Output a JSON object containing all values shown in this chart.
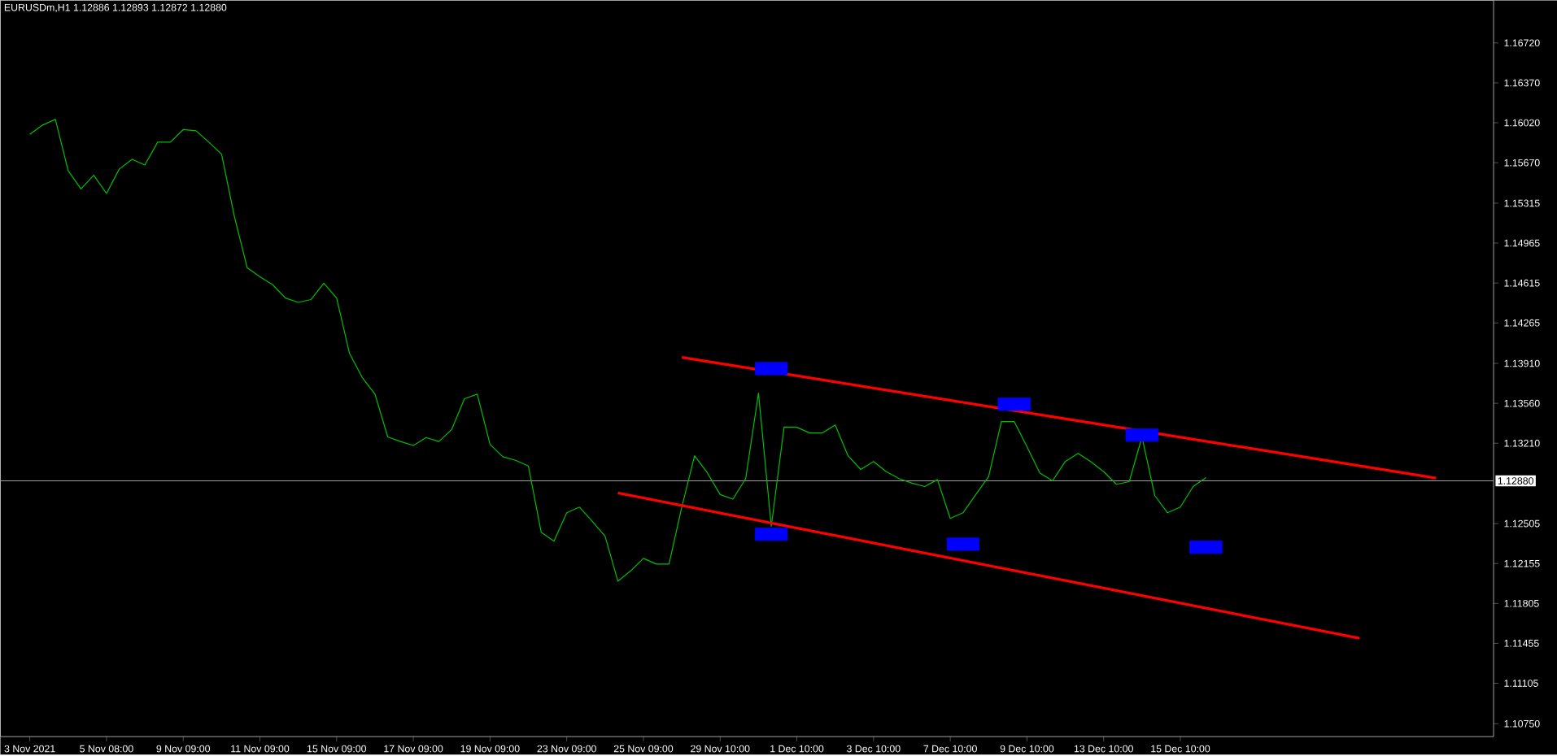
{
  "chart_data": {
    "type": "line",
    "title": "EURUSDm,H1  1.12886 1.12893 1.12872 1.12880",
    "categories": [
      "3 Nov 2021",
      null,
      null,
      null,
      null,
      null,
      "5 Nov 08:00",
      null,
      null,
      null,
      null,
      null,
      "9 Nov 09:00",
      null,
      null,
      null,
      null,
      null,
      "11 Nov 09:00",
      null,
      null,
      null,
      null,
      null,
      "15 Nov 09:00",
      null,
      null,
      null,
      null,
      null,
      "17 Nov 09:00",
      null,
      null,
      null,
      null,
      null,
      "19 Nov 09:00",
      null,
      null,
      null,
      null,
      null,
      "23 Nov 09:00",
      null,
      null,
      null,
      null,
      null,
      "25 Nov 09:00",
      null,
      null,
      null,
      null,
      null,
      "29 Nov 10:00",
      null,
      null,
      null,
      null,
      null,
      "1 Dec 10:00",
      null,
      null,
      null,
      null,
      null,
      "3 Dec 10:00",
      null,
      null,
      null,
      null,
      null,
      "7 Dec 10:00",
      null,
      null,
      null,
      null,
      null,
      "9 Dec 10:00",
      null,
      null,
      null,
      null,
      null,
      "13 Dec 10:00",
      null,
      null,
      null,
      null,
      null,
      "15 Dec 10:00",
      null,
      null,
      null,
      null,
      null,
      null,
      null,
      null,
      null,
      null,
      null,
      null,
      null,
      null,
      null,
      null,
      null,
      null,
      null,
      null,
      null,
      null,
      null,
      null
    ],
    "ylim": [
      1.10637,
      1.17094
    ],
    "yticks": [
      {
        "value": 1.1075,
        "label": "1.10750"
      },
      {
        "value": 1.11105,
        "label": "1.11105"
      },
      {
        "value": 1.11455,
        "label": "1.11455"
      },
      {
        "value": 1.11805,
        "label": "1.11805"
      },
      {
        "value": 1.12155,
        "label": "1.12155"
      },
      {
        "value": 1.12505,
        "label": "1.12505"
      },
      {
        "value": 1.1321,
        "label": "1.13210"
      },
      {
        "value": 1.1356,
        "label": "1.13560"
      },
      {
        "value": 1.1391,
        "label": "1.13910"
      },
      {
        "value": 1.14265,
        "label": "1.14265"
      },
      {
        "value": 1.14615,
        "label": "1.14615"
      },
      {
        "value": 1.14965,
        "label": "1.14965"
      },
      {
        "value": 1.15315,
        "label": "1.15315"
      },
      {
        "value": 1.1567,
        "label": "1.15670"
      },
      {
        "value": 1.1602,
        "label": "1.16020"
      },
      {
        "value": 1.1637,
        "label": "1.16370"
      },
      {
        "value": 1.1672,
        "label": "1.16720"
      }
    ],
    "ref_lines": [
      {
        "axis": "y",
        "value": 1.1288,
        "label": "1.12880",
        "color": "#a0a0a0"
      }
    ],
    "series": [
      {
        "color": "#00c000",
        "values": [
          1.15919,
          1.16,
          1.1605,
          1.156,
          1.1544,
          1.1556,
          1.154,
          1.15615,
          1.157,
          1.1565,
          1.1585,
          1.1585,
          1.1596,
          1.1595,
          1.1585,
          1.15745,
          1.152,
          1.1475,
          1.1467,
          1.146,
          1.14483,
          1.14445,
          1.1447,
          1.14614,
          1.14483,
          1.14,
          1.13787,
          1.1364,
          1.13265,
          1.13225,
          1.1319,
          1.1326,
          1.13225,
          1.1333,
          1.136,
          1.1364,
          1.132,
          1.13091,
          1.1306,
          1.1301,
          1.1243,
          1.12351,
          1.126,
          1.1265,
          1.12525,
          1.12394,
          1.12,
          1.1209,
          1.122,
          1.1215,
          1.1215,
          1.1265,
          1.131,
          1.1295,
          1.1276,
          1.1272,
          1.129,
          1.1365,
          1.12481,
          1.13352,
          1.1335,
          1.133,
          1.133,
          1.1337,
          1.131,
          1.1298,
          1.1305,
          1.1296,
          1.129,
          1.1286,
          1.1283,
          1.1289,
          1.1255,
          1.126,
          1.1276,
          1.12917,
          1.134,
          1.134,
          1.1318,
          1.1295,
          1.1288,
          1.1305,
          1.1312,
          1.13047,
          1.1296,
          1.1285,
          1.12873,
          1.13265,
          1.1275,
          1.126,
          1.1265,
          1.1283,
          1.12908,
          null,
          null,
          null,
          null,
          null,
          null,
          null,
          null,
          null,
          null,
          null,
          null,
          null,
          null,
          null,
          null,
          null,
          null,
          null,
          null,
          null,
          null
        ]
      },
      {
        "type": "line",
        "color": "#ff0000",
        "values": [
          null,
          null,
          null,
          null,
          null,
          null,
          null,
          null,
          null,
          null,
          null,
          null,
          null,
          null,
          null,
          null,
          null,
          null,
          null,
          null,
          null,
          null,
          null,
          null,
          null,
          null,
          null,
          null,
          null,
          null,
          null,
          null,
          null,
          null,
          null,
          null,
          null,
          null,
          null,
          null,
          null,
          null,
          null,
          null,
          null,
          null,
          null,
          null,
          null,
          null,
          null,
          1.13963,
          null,
          null,
          null,
          null,
          null,
          null,
          null,
          null,
          null,
          null,
          null,
          null,
          null,
          null,
          null,
          null,
          null,
          null,
          null,
          null,
          null,
          null,
          null,
          null,
          null,
          null,
          null,
          null,
          null,
          null,
          null,
          null,
          null,
          null,
          null,
          null,
          null,
          null,
          null,
          null,
          null,
          null,
          null,
          null,
          null,
          null,
          null,
          null,
          null,
          null,
          null,
          null,
          null,
          null,
          null,
          null,
          null,
          null,
          1.12904,
          null,
          null,
          null,
          null
        ]
      },
      {
        "type": "line",
        "color": "#ff0000",
        "values": [
          null,
          null,
          null,
          null,
          null,
          null,
          null,
          null,
          null,
          null,
          null,
          null,
          null,
          null,
          null,
          null,
          null,
          null,
          null,
          null,
          null,
          null,
          null,
          null,
          null,
          null,
          null,
          null,
          null,
          null,
          null,
          null,
          null,
          null,
          null,
          null,
          null,
          null,
          null,
          null,
          null,
          null,
          null,
          null,
          null,
          null,
          1.12774,
          null,
          null,
          null,
          null,
          null,
          null,
          null,
          null,
          null,
          null,
          null,
          null,
          null,
          null,
          null,
          null,
          null,
          null,
          null,
          null,
          null,
          null,
          null,
          null,
          null,
          null,
          null,
          null,
          null,
          null,
          null,
          null,
          null,
          null,
          null,
          null,
          null,
          null,
          null,
          null,
          null,
          null,
          null,
          null,
          null,
          null,
          null,
          null,
          null,
          null,
          null,
          null,
          null,
          null,
          null,
          null,
          null,
          1.115,
          null,
          null,
          null,
          null,
          null,
          null,
          null,
          null,
          null,
          null
        ]
      },
      {
        "type": "scatter",
        "marker": "square",
        "color": "#0000ff",
        "values": [
          null,
          null,
          null,
          null,
          null,
          null,
          null,
          null,
          null,
          null,
          null,
          null,
          null,
          null,
          null,
          null,
          null,
          null,
          null,
          null,
          null,
          null,
          null,
          null,
          null,
          null,
          null,
          null,
          null,
          null,
          null,
          null,
          null,
          null,
          null,
          null,
          null,
          null,
          null,
          null,
          null,
          null,
          null,
          null,
          null,
          null,
          null,
          null,
          null,
          null,
          null,
          null,
          null,
          null,
          null,
          null,
          null,
          null,
          1.13865,
          null,
          null,
          null,
          null,
          null,
          null,
          null,
          null,
          null,
          null,
          null,
          null,
          null,
          null,
          null,
          null,
          null,
          null,
          1.13552,
          null,
          null,
          null,
          null,
          null,
          null,
          null,
          null,
          null,
          1.13282,
          null,
          null,
          null,
          null,
          null,
          null,
          null,
          null,
          null,
          null,
          null,
          null,
          null,
          null,
          null,
          null,
          null,
          null,
          null,
          null,
          null,
          null,
          null,
          null,
          null,
          null,
          null
        ]
      },
      {
        "type": "scatter",
        "marker": "square",
        "color": "#0000ff",
        "values": [
          null,
          null,
          null,
          null,
          null,
          null,
          null,
          null,
          null,
          null,
          null,
          null,
          null,
          null,
          null,
          null,
          null,
          null,
          null,
          null,
          null,
          null,
          null,
          null,
          null,
          null,
          null,
          null,
          null,
          null,
          null,
          null,
          null,
          null,
          null,
          null,
          null,
          null,
          null,
          null,
          null,
          null,
          null,
          null,
          null,
          null,
          null,
          null,
          null,
          null,
          null,
          null,
          null,
          null,
          null,
          null,
          null,
          null,
          1.12412,
          null,
          null,
          null,
          null,
          null,
          null,
          null,
          null,
          null,
          null,
          null,
          null,
          null,
          null,
          1.12325,
          null,
          null,
          null,
          null,
          null,
          null,
          null,
          null,
          null,
          null,
          null,
          null,
          null,
          null,
          null,
          null,
          null,
          null,
          1.12299,
          null,
          null,
          null,
          null,
          null,
          null,
          null,
          null,
          null,
          null,
          null,
          null,
          null,
          null,
          null,
          null,
          null,
          null,
          null,
          null,
          null,
          null
        ]
      }
    ]
  }
}
